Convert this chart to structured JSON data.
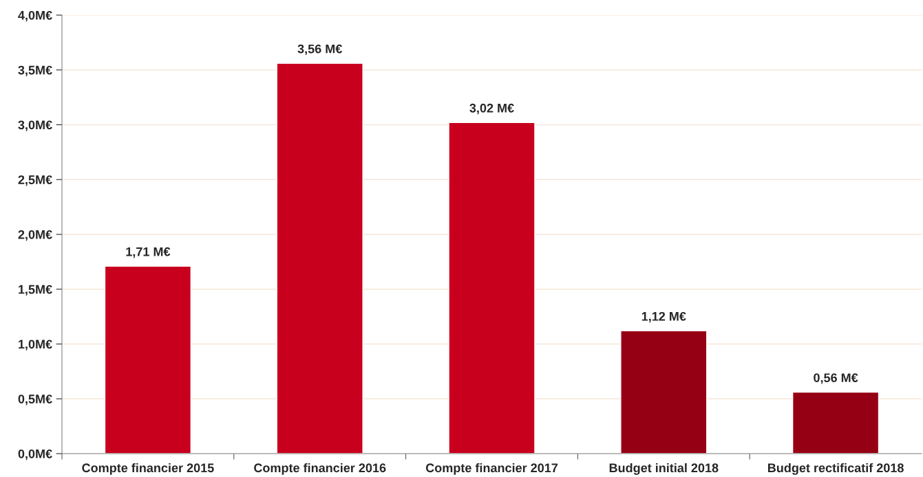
{
  "chart_data": {
    "type": "bar",
    "categories": [
      "Compte financier 2015",
      "Compte financier 2016",
      "Compte financier 2017",
      "Budget initial 2018",
      "Budget rectificatif 2018"
    ],
    "values": [
      1.71,
      3.56,
      3.02,
      1.12,
      0.56
    ],
    "colors": [
      "#c8001e",
      "#c8001e",
      "#c8001e",
      "#960014",
      "#960014"
    ],
    "value_labels": [
      "1,71 M€",
      "3,56 M€",
      "3,02 M€",
      "1,12 M€",
      "0,56 M€"
    ],
    "ylim": [
      0,
      4
    ],
    "yticks": [
      {
        "value": 0,
        "label": "0,0M€"
      },
      {
        "value": 0.5,
        "label": "0,5M€"
      },
      {
        "value": 1,
        "label": "1,0M€"
      },
      {
        "value": 1.5,
        "label": "1,5M€"
      },
      {
        "value": 2,
        "label": "2,0M€"
      },
      {
        "value": 2.5,
        "label": "2,5M€"
      },
      {
        "value": 3,
        "label": "3,0M€"
      },
      {
        "value": 3.5,
        "label": "3,5M€"
      },
      {
        "value": 4,
        "label": "4,0M€"
      }
    ],
    "grid": "y"
  }
}
